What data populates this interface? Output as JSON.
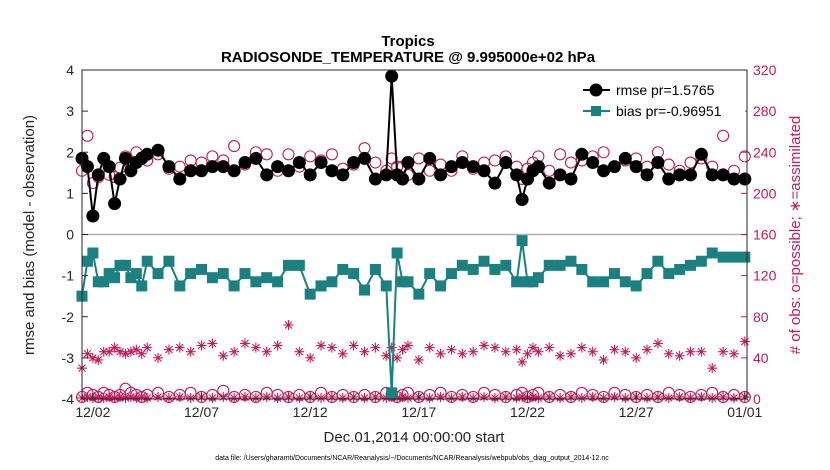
{
  "chart_data": {
    "type": "line",
    "title": "Tropics",
    "subtitle": "RADIOSONDE_TEMPERATURE @ 9.995000e+02 hPa",
    "xlabel": "Dec.01,2014 00:00:00 start",
    "ylabel": "rmse and bias (model - observation)",
    "ylabel_right": "# of obs: o=possible; ∗=assimilated",
    "footnote": "data file: /Users/gharamti/Documents/NCAR/Reanalysis/~/Documents/NCAR/Reanalysis/webpub/obs_diag_output_2014-12.nc",
    "xlim": [
      1.5,
      32.1
    ],
    "ylim": [
      -4,
      4
    ],
    "ylim_right": [
      0,
      320
    ],
    "x_ticks": [
      {
        "value": 2,
        "label": "12/02"
      },
      {
        "value": 7,
        "label": "12/07"
      },
      {
        "value": 12,
        "label": "12/12"
      },
      {
        "value": 17,
        "label": "12/17"
      },
      {
        "value": 22,
        "label": "12/22"
      },
      {
        "value": 27,
        "label": "12/27"
      },
      {
        "value": 32,
        "label": "01/01"
      }
    ],
    "y_ticks": [
      "-4",
      "-3",
      "-2",
      "-1",
      "0",
      "1",
      "2",
      "3",
      "4"
    ],
    "y_ticks_right": [
      "0",
      "40",
      "80",
      "120",
      "160",
      "200",
      "240",
      "280",
      "320"
    ],
    "legend": [
      {
        "label": "rmse pr=1.5765",
        "color": "#000000",
        "marker": "circle"
      },
      {
        "label": "bias pr=-0.96951",
        "color": "#1a8080",
        "marker": "square"
      }
    ],
    "colors": {
      "rmse": "#000000",
      "bias": "#1a8080",
      "counts": "#c51b5b",
      "zero_line": "#b0b0b0"
    },
    "x": [
      1.5,
      1.75,
      2,
      2.25,
      2.5,
      2.75,
      3,
      3.25,
      3.5,
      3.75,
      4,
      4.25,
      4.5,
      5,
      5.5,
      6,
      6.5,
      7,
      7.5,
      8,
      8.5,
      9,
      9.5,
      10,
      10.5,
      11,
      11.5,
      12,
      12.5,
      13,
      13.5,
      14,
      14.5,
      15,
      15.5,
      15.75,
      16,
      16.25,
      16.5,
      17,
      17.5,
      18,
      18.5,
      19,
      19.5,
      20,
      20.5,
      21,
      21.5,
      21.75,
      22,
      22.25,
      22.5,
      23,
      23.5,
      24,
      24.5,
      25,
      25.5,
      26,
      26.5,
      27,
      27.5,
      28,
      28.5,
      29,
      29.5,
      30,
      30.5,
      31,
      31.5,
      32
    ],
    "rmse": [
      1.85,
      1.65,
      0.45,
      1.45,
      1.85,
      1.65,
      0.75,
      1.35,
      1.85,
      1.55,
      1.75,
      1.85,
      1.95,
      2.05,
      1.65,
      1.35,
      1.55,
      1.55,
      1.65,
      1.65,
      1.55,
      1.75,
      1.85,
      1.45,
      1.65,
      1.55,
      1.75,
      1.45,
      1.75,
      1.55,
      1.45,
      1.75,
      1.85,
      1.35,
      1.45,
      3.85,
      1.45,
      1.35,
      1.75,
      1.35,
      1.85,
      1.45,
      1.65,
      1.75,
      1.65,
      1.55,
      1.25,
      1.75,
      1.45,
      0.85,
      1.35,
      1.55,
      1.65,
      1.25,
      1.45,
      1.35,
      1.95,
      1.75,
      1.55,
      1.65,
      1.85,
      1.65,
      1.45,
      1.75,
      1.35,
      1.45,
      1.45,
      1.95,
      1.45,
      1.45,
      1.35,
      1.35
    ],
    "bias": [
      -1.5,
      -0.65,
      -0.45,
      -1.15,
      -1.15,
      -0.95,
      -1.05,
      -0.75,
      -0.75,
      -1.05,
      -0.95,
      -1.25,
      -0.65,
      -0.95,
      -0.65,
      -1.25,
      -0.95,
      -0.85,
      -1.05,
      -0.95,
      -1.25,
      -0.95,
      -1.15,
      -1.05,
      -1.15,
      -0.75,
      -0.75,
      -1.45,
      -1.25,
      -1.15,
      -0.85,
      -0.95,
      -1.35,
      -0.85,
      -1.25,
      -3.85,
      -0.45,
      -1.15,
      -1.15,
      -1.45,
      -0.95,
      -1.25,
      -0.95,
      -0.75,
      -0.85,
      -0.65,
      -0.85,
      -0.75,
      -1.15,
      -0.15,
      -1.15,
      -1.15,
      -1.05,
      -0.75,
      -0.75,
      -0.65,
      -0.85,
      -1.15,
      -1.15,
      -0.95,
      -1.15,
      -1.25,
      -0.95,
      -0.65,
      -0.95,
      -0.85,
      -0.75,
      -0.65,
      -0.45,
      -0.55,
      -0.55,
      -0.55
    ],
    "possible": [
      222,
      256,
      210,
      216,
      234,
      218,
      216,
      225,
      236,
      230,
      240,
      235,
      232,
      238,
      224,
      226,
      232,
      230,
      236,
      232,
      246,
      228,
      240,
      238,
      222,
      238,
      226,
      236,
      232,
      238,
      224,
      228,
      244,
      230,
      222,
      234,
      226,
      226,
      218,
      234,
      222,
      228,
      222,
      236,
      224,
      230,
      232,
      236,
      226,
      214,
      224,
      230,
      236,
      222,
      238,
      230,
      232,
      236,
      240,
      226,
      232,
      234,
      226,
      240,
      228,
      222,
      230,
      234,
      226,
      256,
      222,
      236
    ],
    "assimilated": [
      30,
      44,
      40,
      38,
      46,
      46,
      50,
      46,
      44,
      46,
      48,
      44,
      50,
      40,
      48,
      50,
      46,
      52,
      54,
      42,
      46,
      54,
      50,
      46,
      52,
      72,
      46,
      40,
      52,
      50,
      44,
      52,
      46,
      50,
      42,
      50,
      40,
      48,
      52,
      38,
      50,
      44,
      48,
      44,
      46,
      52,
      50,
      46,
      48,
      36,
      44,
      50,
      46,
      50,
      42,
      44,
      50,
      46,
      38,
      48,
      46,
      40,
      48,
      54,
      44,
      42,
      46,
      46,
      30,
      46,
      44,
      56
    ],
    "possible_bottom": [
      2,
      6,
      4,
      2,
      6,
      4,
      2,
      4,
      10,
      6,
      4,
      2,
      4,
      6,
      2,
      4,
      6,
      2,
      4,
      8,
      2,
      4,
      2,
      6,
      4,
      2,
      4,
      2,
      6,
      2,
      4,
      2,
      4,
      2,
      6,
      4,
      2,
      4,
      6,
      2,
      4,
      6,
      2,
      4,
      2,
      6,
      4,
      2,
      4,
      6,
      2,
      4,
      6,
      2,
      4,
      2,
      6,
      4,
      2,
      6,
      4,
      2,
      4,
      2,
      6,
      4,
      2,
      4,
      6,
      2,
      4,
      2
    ],
    "assimilated_bottom": [
      1,
      2,
      1,
      2,
      1,
      2,
      1,
      2,
      1,
      2,
      1,
      2,
      1,
      2,
      1,
      2,
      1,
      2,
      1,
      2,
      1,
      2,
      1,
      2,
      1,
      2,
      1,
      2,
      1,
      2,
      1,
      2,
      1,
      2,
      1,
      2,
      1,
      2,
      1,
      2,
      1,
      2,
      1,
      2,
      1,
      2,
      1,
      2,
      1,
      2,
      1,
      2,
      1,
      2,
      1,
      2,
      1,
      2,
      1,
      2,
      1,
      2,
      1,
      2,
      1,
      2,
      1,
      2,
      1,
      2,
      1,
      2
    ]
  }
}
